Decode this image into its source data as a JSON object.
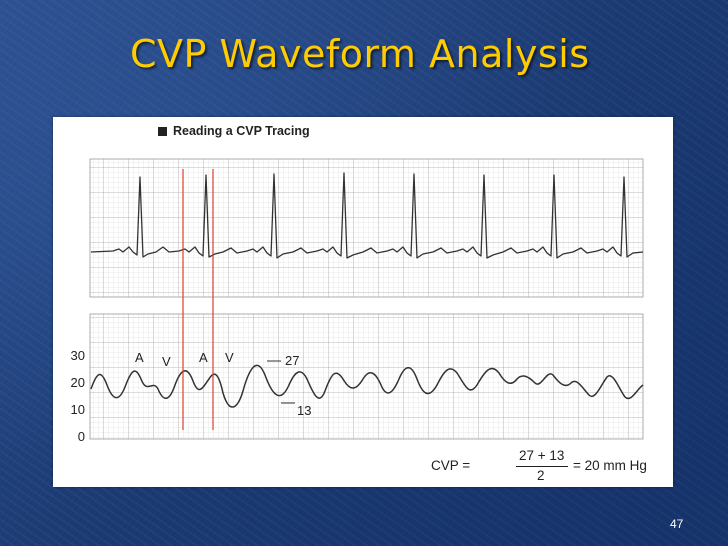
{
  "slide": {
    "title": "CVP Waveform Analysis",
    "page_number": "47"
  },
  "figure": {
    "heading": "Reading a CVP Tracing",
    "scale_labels": [
      "30",
      "20",
      "10",
      "0"
    ],
    "wave_labels": [
      "A",
      "V",
      "A",
      "V",
      "27",
      "13"
    ],
    "formula": {
      "lhs": "CVP =",
      "numerator": "27 + 13",
      "denominator": "2",
      "rhs": "= 20 mm Hg"
    }
  },
  "colors": {
    "title": "#ffcc00",
    "grid": "#bdbdbd",
    "trace": "#333333",
    "marker": "#e03c2c"
  }
}
